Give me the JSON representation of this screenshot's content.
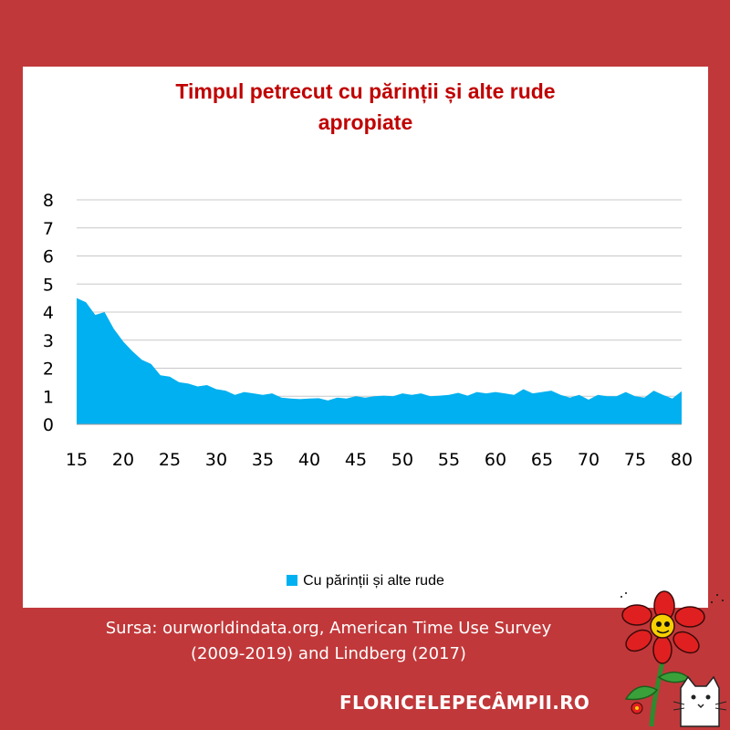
{
  "colors": {
    "background": "#c1383a",
    "title": "#c00000",
    "series": "#00b0f0",
    "panel": "#ffffff"
  },
  "chart_data": {
    "type": "area",
    "title_line1": "Timpul petrecut cu părinții și alte rude",
    "title_line2": "apropiate",
    "xlabel": "",
    "ylabel": "",
    "xlim": [
      15,
      80
    ],
    "ylim": [
      0,
      8
    ],
    "x_ticks": [
      15,
      20,
      25,
      30,
      35,
      40,
      45,
      50,
      55,
      60,
      65,
      70,
      75,
      80
    ],
    "y_ticks": [
      0,
      1,
      2,
      3,
      4,
      5,
      6,
      7,
      8
    ],
    "grid": true,
    "legend_position": "bottom",
    "x": [
      15,
      16,
      17,
      18,
      19,
      20,
      21,
      22,
      23,
      24,
      25,
      26,
      27,
      28,
      29,
      30,
      31,
      32,
      33,
      34,
      35,
      36,
      37,
      38,
      39,
      40,
      41,
      42,
      43,
      44,
      45,
      46,
      47,
      48,
      49,
      50,
      51,
      52,
      53,
      54,
      55,
      56,
      57,
      58,
      59,
      60,
      61,
      62,
      63,
      64,
      65,
      66,
      67,
      68,
      69,
      70,
      71,
      72,
      73,
      74,
      75,
      76,
      77,
      78,
      79,
      80
    ],
    "series": [
      {
        "name": "Cu părinții și alte rude",
        "values": [
          4.5,
          4.35,
          3.9,
          4.0,
          3.4,
          2.95,
          2.6,
          2.3,
          2.15,
          1.75,
          1.7,
          1.5,
          1.45,
          1.35,
          1.4,
          1.25,
          1.2,
          1.05,
          1.15,
          1.1,
          1.05,
          1.1,
          0.95,
          0.92,
          0.9,
          0.92,
          0.93,
          0.85,
          0.95,
          0.92,
          1.0,
          0.95,
          1.0,
          1.02,
          1.0,
          1.1,
          1.05,
          1.1,
          1.0,
          1.02,
          1.05,
          1.12,
          1.02,
          1.15,
          1.1,
          1.15,
          1.1,
          1.05,
          1.25,
          1.1,
          1.15,
          1.2,
          1.05,
          0.95,
          1.05,
          0.88,
          1.05,
          1.0,
          1.0,
          1.15,
          1.0,
          0.95,
          1.2,
          1.05,
          0.92,
          1.18
        ]
      }
    ]
  },
  "legend": {
    "label": "Cu părinții și alte rude"
  },
  "source": {
    "line1": "Sursa: ourworldindata.org, American Time Use Survey",
    "line2": "(2009-2019) and Lindberg (2017)"
  },
  "brand": {
    "text": "FLORICELEPECÂMPII.RO"
  }
}
